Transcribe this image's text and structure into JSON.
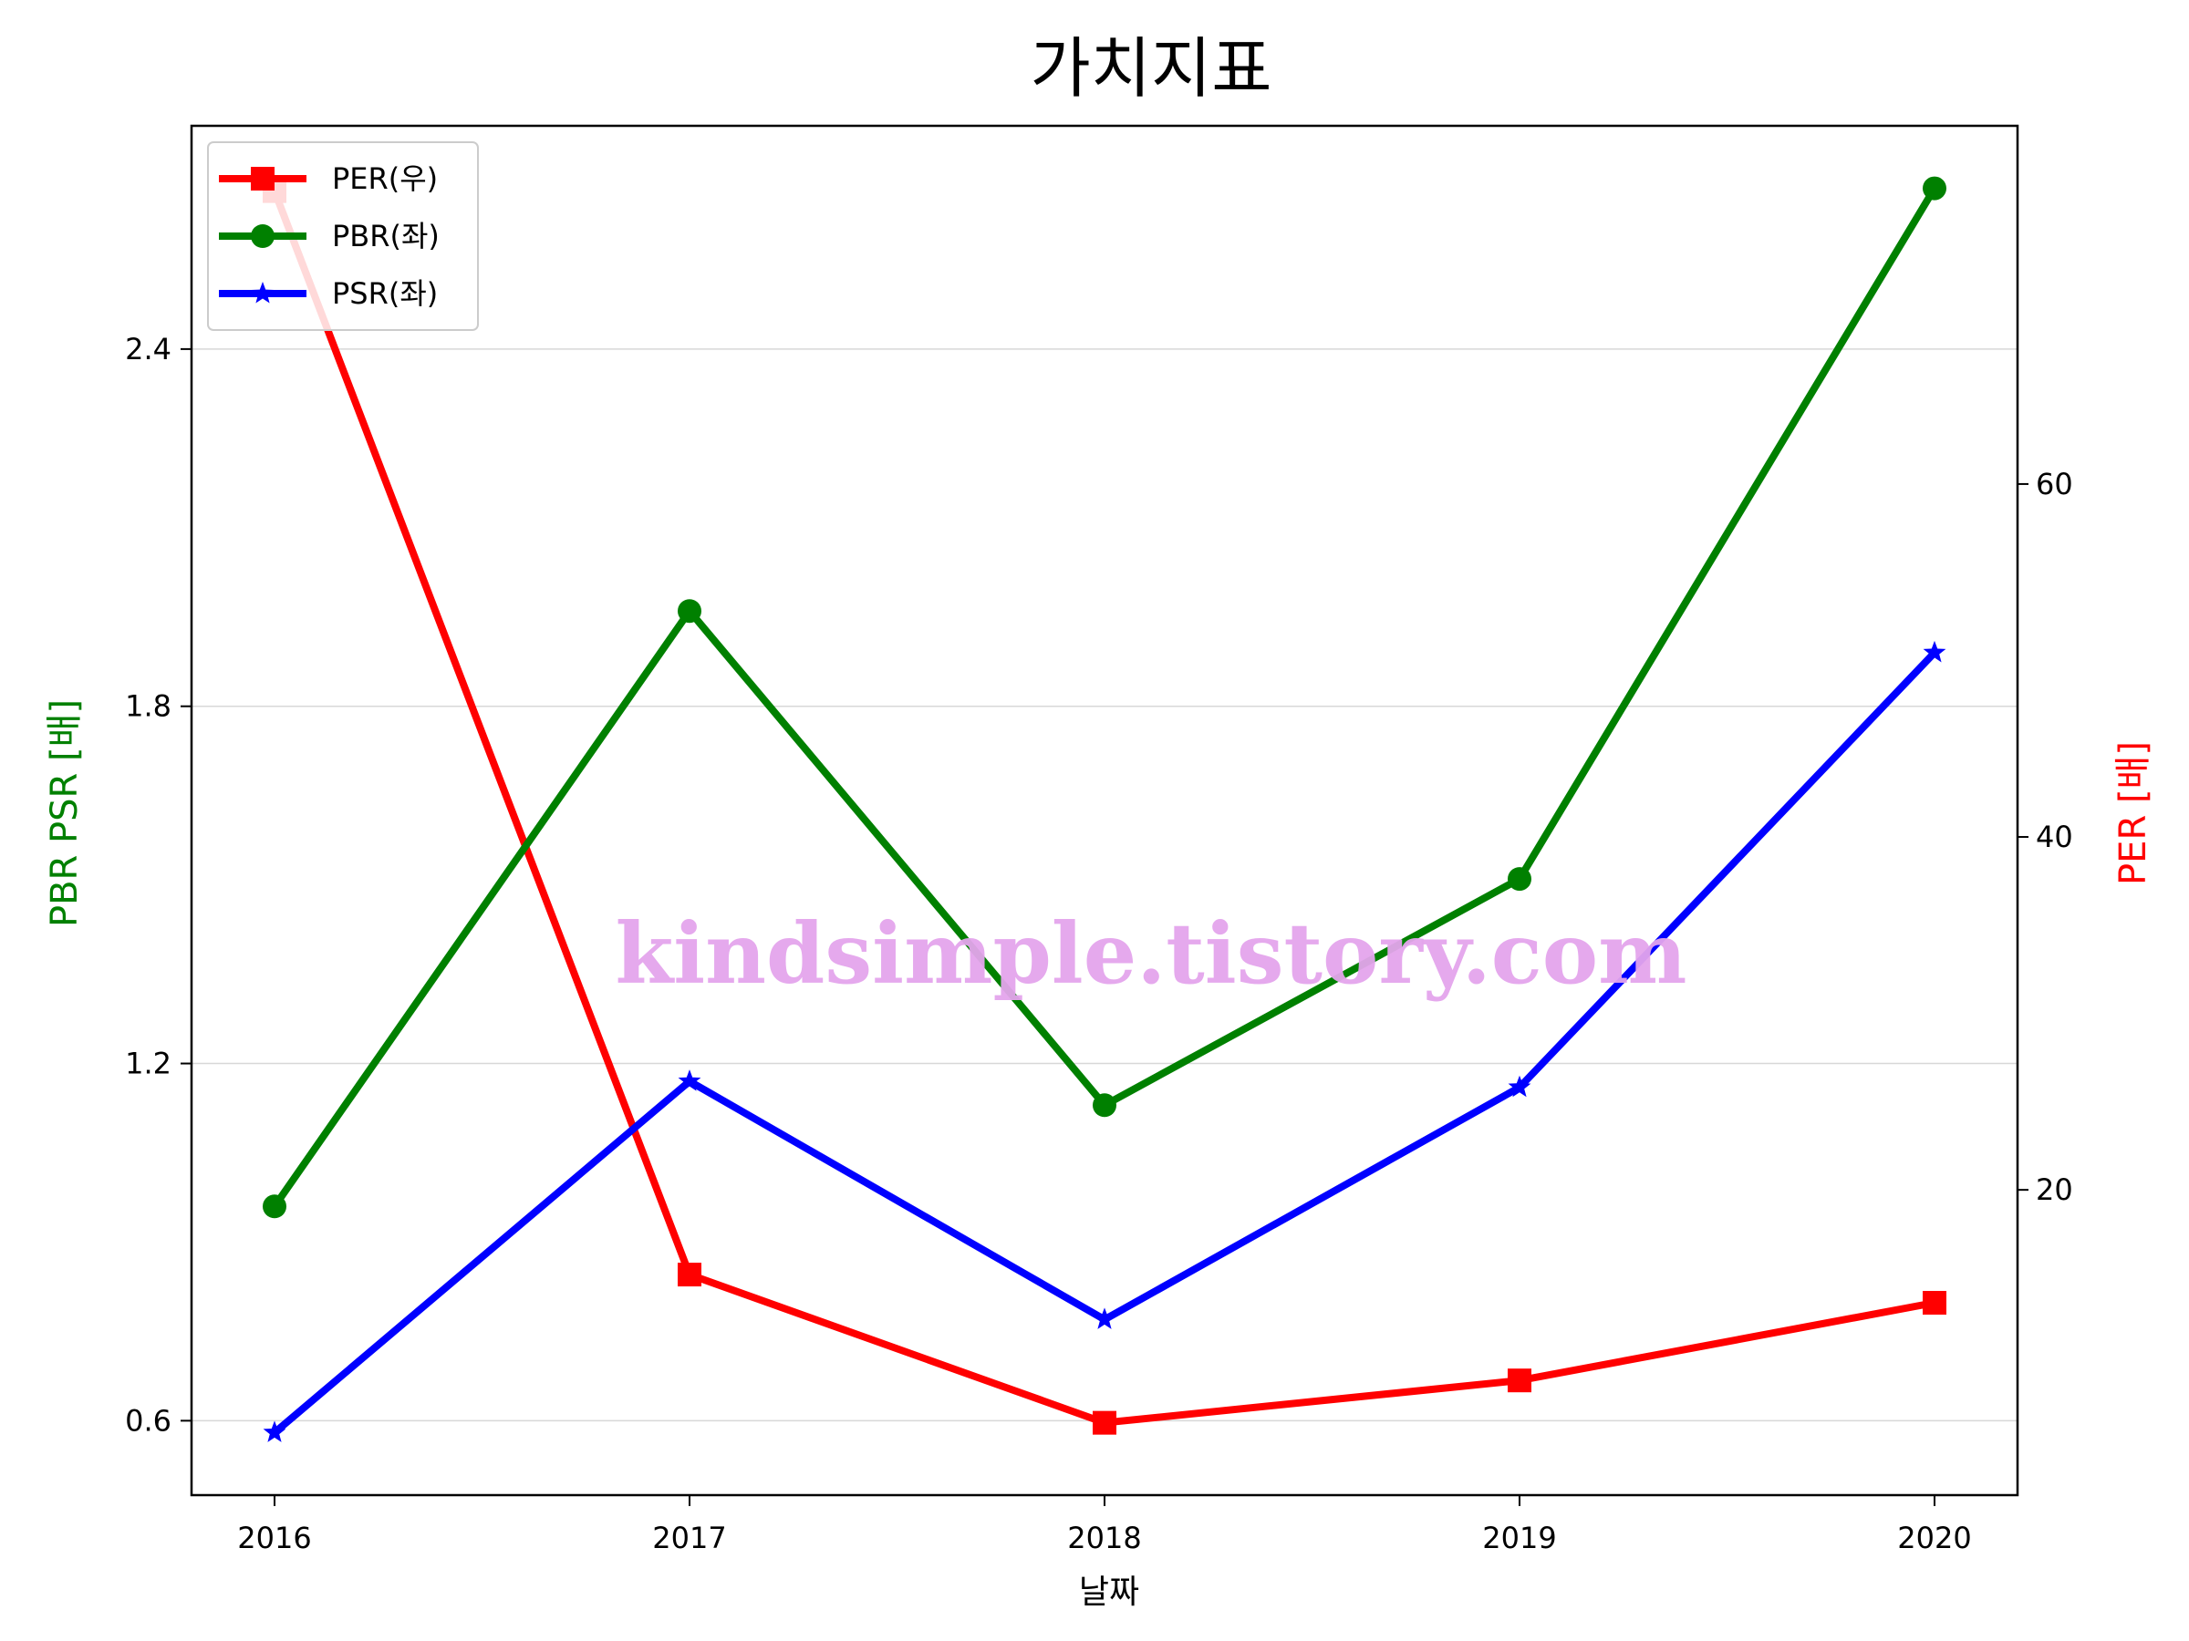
{
  "chart_data": {
    "type": "line",
    "title": "가치지표",
    "xlabel": "날짜",
    "ylabel_left": "PBR PSR [배]",
    "ylabel_right": "PER [배]",
    "x": [
      "2016",
      "2017",
      "2018",
      "2019",
      "2020"
    ],
    "y_left_ticks": [
      "0.6",
      "1.2",
      "1.8",
      "2.4"
    ],
    "y_left_lim": [
      0.475,
      2.775
    ],
    "y_right_ticks": [
      "20",
      "40",
      "60"
    ],
    "y_right_lim": [
      2.7,
      80.3
    ],
    "grid": "horizontal (left axis)",
    "legend_placement": "upper-left",
    "series": [
      {
        "name": "PER(우)",
        "axis": "right",
        "marker": "square",
        "color": "#ff0000",
        "values": [
          76.6,
          15.2,
          6.8,
          9.2,
          13.6
        ]
      },
      {
        "name": "PBR(좌)",
        "axis": "left",
        "marker": "circle",
        "color": "#008000",
        "values": [
          0.96,
          1.96,
          1.13,
          1.51,
          2.67
        ]
      },
      {
        "name": "PSR(좌)",
        "axis": "left",
        "marker": "star",
        "color": "#0000ff",
        "values": [
          0.58,
          1.17,
          0.77,
          1.16,
          1.89
        ]
      }
    ],
    "annotations": [
      {
        "text": "kindsimple.tistory.com",
        "color": "#e4a4ec"
      }
    ]
  }
}
